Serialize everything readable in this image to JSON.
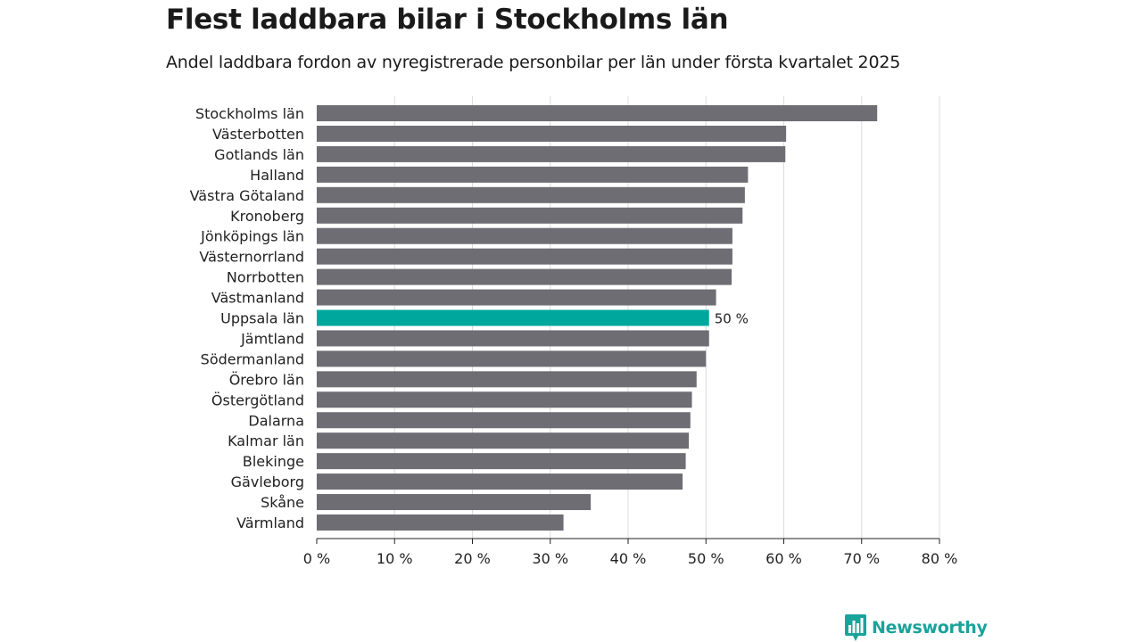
{
  "title": "Flest laddbara bilar i Stockholms län",
  "subtitle": "Andel laddbara fordon av nyregistrerade personbilar per län under första kvartalet 2025",
  "brand": {
    "name": "Newsworthy",
    "color": "#1aa39a",
    "icon": "bar-chart-speech-bubble-icon"
  },
  "colors": {
    "bar": "#6d6d73",
    "highlight": "#00a79d",
    "grid": "#dcdcdc",
    "axis": "#222222"
  },
  "chart_data": {
    "type": "bar",
    "orientation": "horizontal",
    "categories": [
      "Stockholms län",
      "Västerbotten",
      "Gotlands län",
      "Halland",
      "Västra Götaland",
      "Kronoberg",
      "Jönköpings län",
      "Västernorrland",
      "Norrbotten",
      "Västmanland",
      "Uppsala län",
      "Jämtland",
      "Södermanland",
      "Örebro län",
      "Östergötland",
      "Dalarna",
      "Kalmar län",
      "Blekinge",
      "Gävleborg",
      "Skåne",
      "Värmland"
    ],
    "values": [
      72,
      60.3,
      60.2,
      55.4,
      55.0,
      54.7,
      53.4,
      53.4,
      53.3,
      51.3,
      50.4,
      50.4,
      50.0,
      48.8,
      48.2,
      48.0,
      47.8,
      47.4,
      47.0,
      35.2,
      31.7
    ],
    "highlight_index": 10,
    "highlight_label": "50 %",
    "xlim": [
      0,
      80
    ],
    "xticks": [
      0,
      10,
      20,
      30,
      40,
      50,
      60,
      70,
      80
    ],
    "xtick_labels": [
      "0 %",
      "10 %",
      "20 %",
      "30 %",
      "40 %",
      "50 %",
      "60 %",
      "70 %",
      "80 %"
    ],
    "grid": true,
    "legend": "none"
  }
}
